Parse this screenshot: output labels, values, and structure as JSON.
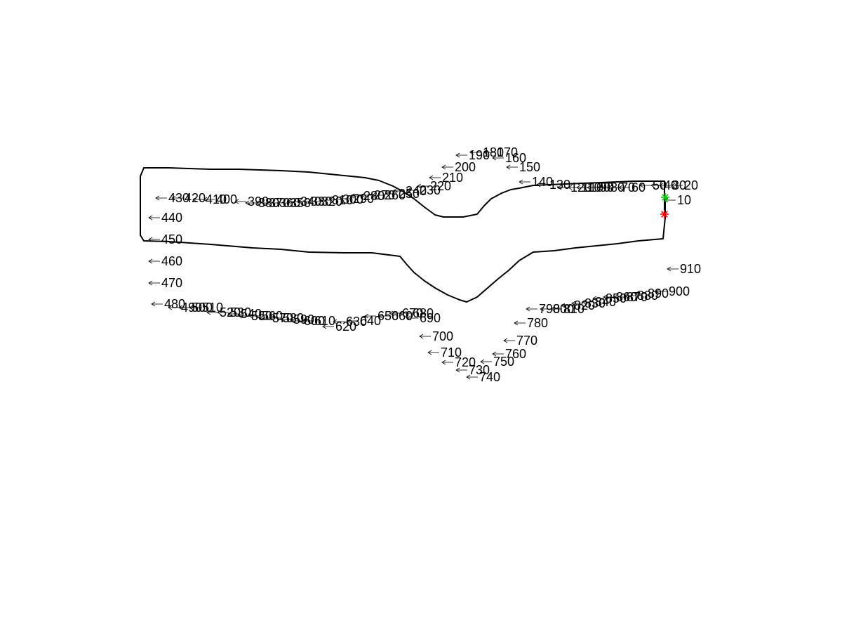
{
  "chart_data": {
    "type": "line",
    "title": "",
    "xlabel": "",
    "ylabel": "",
    "axes_visible": false,
    "grid": false,
    "xlim": [
      0,
      1000
    ],
    "ylim": [
      -250,
      250
    ],
    "line_color": "#000000",
    "path": {
      "x": [
        947,
        947,
        947,
        935,
        905,
        830,
        760,
        740,
        728,
        715,
        700,
        690,
        680,
        660,
        645,
        632,
        620,
        605,
        590,
        575,
        560,
        540,
        520,
        480,
        440,
        400,
        340,
        300,
        240,
        205,
        200,
        200,
        200,
        200,
        205,
        240,
        300,
        360,
        400,
        440,
        490,
        530,
        570,
        580,
        590,
        605,
        620,
        638,
        655,
        665,
        680,
        695,
        710,
        725,
        740,
        760,
        790,
        820,
        850,
        880,
        910,
        945,
        948,
        948
      ],
      "y": [
        0,
        20,
        47,
        47,
        47,
        44,
        41,
        37,
        35,
        30,
        22,
        12,
        0,
        -4,
        -4,
        -4,
        -1,
        10,
        22,
        32,
        40,
        48,
        52,
        56,
        60,
        62,
        64,
        64,
        66,
        66,
        54,
        29,
        -1,
        -30,
        -38,
        -39,
        -43,
        -48,
        -50,
        -54,
        -55,
        -55,
        -60,
        -72,
        -83,
        -95,
        -105,
        -115,
        -122,
        -125,
        -118,
        -105,
        -92,
        -80,
        -66,
        -54,
        -52,
        -48,
        -45,
        -42,
        -38,
        -35,
        -5,
        24
      ]
    },
    "start_marker": {
      "x": 947,
      "y": 0,
      "color": "#ff0000",
      "symbol": "*"
    },
    "end_marker": {
      "x": 948,
      "y": 24,
      "color": "#00cc00",
      "symbol": "*"
    },
    "annotations": [
      {
        "text": "10",
        "x": 947,
        "y": 20
      },
      {
        "text": "20",
        "x": 957,
        "y": 41
      },
      {
        "text": "30",
        "x": 940,
        "y": 41
      },
      {
        "text": "40",
        "x": 928,
        "y": 41
      },
      {
        "text": "50",
        "x": 912,
        "y": 41
      },
      {
        "text": "60",
        "x": 882,
        "y": 38
      },
      {
        "text": "70",
        "x": 867,
        "y": 38
      },
      {
        "text": "80",
        "x": 852,
        "y": 38
      },
      {
        "text": "90",
        "x": 837,
        "y": 38
      },
      {
        "text": "100",
        "x": 822,
        "y": 38
      },
      {
        "text": "110",
        "x": 810,
        "y": 38
      },
      {
        "text": "120",
        "x": 795,
        "y": 38
      },
      {
        "text": "130",
        "x": 765,
        "y": 42
      },
      {
        "text": "140",
        "x": 740,
        "y": 46
      },
      {
        "text": "150",
        "x": 722,
        "y": 67
      },
      {
        "text": "160",
        "x": 702,
        "y": 80
      },
      {
        "text": "170",
        "x": 690,
        "y": 88
      },
      {
        "text": "180",
        "x": 670,
        "y": 88
      },
      {
        "text": "190",
        "x": 650,
        "y": 84
      },
      {
        "text": "200",
        "x": 630,
        "y": 67
      },
      {
        "text": "210",
        "x": 612,
        "y": 52
      },
      {
        "text": "220",
        "x": 595,
        "y": 40
      },
      {
        "text": "230",
        "x": 580,
        "y": 34
      },
      {
        "text": "240",
        "x": 560,
        "y": 33
      },
      {
        "text": "250",
        "x": 550,
        "y": 29
      },
      {
        "text": "260",
        "x": 530,
        "y": 27
      },
      {
        "text": "270",
        "x": 515,
        "y": 27
      },
      {
        "text": "280",
        "x": 500,
        "y": 26
      },
      {
        "text": "290",
        "x": 485,
        "y": 22
      },
      {
        "text": "300",
        "x": 470,
        "y": 21
      },
      {
        "text": "310",
        "x": 455,
        "y": 20
      },
      {
        "text": "320",
        "x": 440,
        "y": 18
      },
      {
        "text": "330",
        "x": 425,
        "y": 18
      },
      {
        "text": "340",
        "x": 410,
        "y": 18
      },
      {
        "text": "350",
        "x": 395,
        "y": 16
      },
      {
        "text": "360",
        "x": 380,
        "y": 16
      },
      {
        "text": "370",
        "x": 365,
        "y": 16
      },
      {
        "text": "380",
        "x": 350,
        "y": 16
      },
      {
        "text": "390",
        "x": 335,
        "y": 18
      },
      {
        "text": "400",
        "x": 290,
        "y": 21
      },
      {
        "text": "410",
        "x": 275,
        "y": 21
      },
      {
        "text": "420",
        "x": 245,
        "y": 23
      },
      {
        "text": "430",
        "x": 222,
        "y": 23
      },
      {
        "text": "440",
        "x": 212,
        "y": -5
      },
      {
        "text": "450",
        "x": 212,
        "y": -36
      },
      {
        "text": "460",
        "x": 212,
        "y": -67
      },
      {
        "text": "470",
        "x": 212,
        "y": -98
      },
      {
        "text": "480",
        "x": 216,
        "y": -128
      },
      {
        "text": "490",
        "x": 240,
        "y": -133
      },
      {
        "text": "500",
        "x": 255,
        "y": -133
      },
      {
        "text": "510",
        "x": 270,
        "y": -133
      },
      {
        "text": "520",
        "x": 295,
        "y": -140
      },
      {
        "text": "530",
        "x": 310,
        "y": -140
      },
      {
        "text": "540",
        "x": 325,
        "y": -142
      },
      {
        "text": "550",
        "x": 340,
        "y": -145
      },
      {
        "text": "560",
        "x": 355,
        "y": -145
      },
      {
        "text": "570",
        "x": 370,
        "y": -148
      },
      {
        "text": "580",
        "x": 385,
        "y": -148
      },
      {
        "text": "590",
        "x": 400,
        "y": -150
      },
      {
        "text": "600",
        "x": 415,
        "y": -152
      },
      {
        "text": "610",
        "x": 430,
        "y": -152
      },
      {
        "text": "620",
        "x": 460,
        "y": -160
      },
      {
        "text": "630",
        "x": 475,
        "y": -153
      },
      {
        "text": "640",
        "x": 495,
        "y": -152
      },
      {
        "text": "650",
        "x": 520,
        "y": -145
      },
      {
        "text": "660",
        "x": 540,
        "y": -145
      },
      {
        "text": "670",
        "x": 555,
        "y": -141
      },
      {
        "text": "680",
        "x": 570,
        "y": -141
      },
      {
        "text": "690",
        "x": 580,
        "y": -148
      },
      {
        "text": "700",
        "x": 598,
        "y": -174
      },
      {
        "text": "710",
        "x": 610,
        "y": -197
      },
      {
        "text": "720",
        "x": 630,
        "y": -211
      },
      {
        "text": "730",
        "x": 650,
        "y": -222
      },
      {
        "text": "740",
        "x": 665,
        "y": -232
      },
      {
        "text": "750",
        "x": 685,
        "y": -210
      },
      {
        "text": "760",
        "x": 702,
        "y": -199
      },
      {
        "text": "770",
        "x": 718,
        "y": -180
      },
      {
        "text": "780",
        "x": 733,
        "y": -155
      },
      {
        "text": "790",
        "x": 750,
        "y": -135
      },
      {
        "text": "800",
        "x": 770,
        "y": -135
      },
      {
        "text": "810",
        "x": 785,
        "y": -135
      },
      {
        "text": "820",
        "x": 800,
        "y": -130
      },
      {
        "text": "830",
        "x": 815,
        "y": -127
      },
      {
        "text": "840",
        "x": 830,
        "y": -125
      },
      {
        "text": "850",
        "x": 845,
        "y": -120
      },
      {
        "text": "860",
        "x": 860,
        "y": -118
      },
      {
        "text": "870",
        "x": 875,
        "y": -118
      },
      {
        "text": "880",
        "x": 890,
        "y": -116
      },
      {
        "text": "890",
        "x": 905,
        "y": -113
      },
      {
        "text": "900",
        "x": 935,
        "y": -110
      },
      {
        "text": "910",
        "x": 951,
        "y": -78
      }
    ]
  }
}
